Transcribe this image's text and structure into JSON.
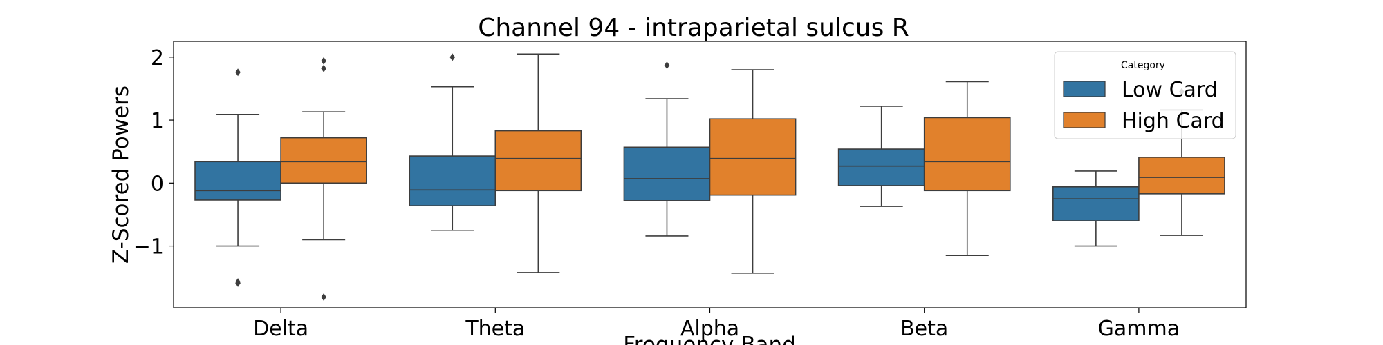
{
  "chart_data": {
    "type": "box",
    "title": "Channel 94 - intraparietal sulcus R",
    "xlabel": "Frequency Band",
    "ylabel": "Z-Scored Powers",
    "ylim": [
      -1.98,
      2.25
    ],
    "yticks": [
      2,
      1,
      0,
      -1
    ],
    "ytick_labels": [
      "2",
      "1",
      "0",
      "−1"
    ],
    "categories": [
      "Delta",
      "Theta",
      "Alpha",
      "Beta",
      "Gamma"
    ],
    "legend": {
      "title": "Category",
      "position": "top-right"
    },
    "series": [
      {
        "name": "Low Card",
        "color": "#3274a1",
        "boxes": [
          {
            "whislo": -1.0,
            "q1": -0.27,
            "med": -0.12,
            "q3": 0.34,
            "whishi": 1.09,
            "fliers": [
              -1.57,
              -1.59,
              1.76
            ]
          },
          {
            "whislo": -0.75,
            "q1": -0.36,
            "med": -0.11,
            "q3": 0.43,
            "whishi": 1.53,
            "fliers": [
              2.0
            ]
          },
          {
            "whislo": -0.84,
            "q1": -0.28,
            "med": 0.07,
            "q3": 0.57,
            "whishi": 1.34,
            "fliers": [
              1.87
            ]
          },
          {
            "whislo": -0.37,
            "q1": -0.04,
            "med": 0.27,
            "q3": 0.54,
            "whishi": 1.22,
            "fliers": []
          },
          {
            "whislo": -1.0,
            "q1": -0.6,
            "med": -0.25,
            "q3": -0.06,
            "whishi": 0.19,
            "fliers": []
          }
        ]
      },
      {
        "name": "High Card",
        "color": "#e1812c",
        "boxes": [
          {
            "whislo": -0.9,
            "q1": 0.0,
            "med": 0.34,
            "q3": 0.72,
            "whishi": 1.13,
            "fliers": [
              1.82,
              1.94,
              -1.81
            ]
          },
          {
            "whislo": -1.42,
            "q1": -0.12,
            "med": 0.39,
            "q3": 0.83,
            "whishi": 2.05,
            "fliers": []
          },
          {
            "whislo": -1.43,
            "q1": -0.19,
            "med": 0.39,
            "q3": 1.02,
            "whishi": 1.8,
            "fliers": []
          },
          {
            "whislo": -1.15,
            "q1": -0.12,
            "med": 0.34,
            "q3": 1.04,
            "whishi": 1.61,
            "fliers": []
          },
          {
            "whislo": -0.83,
            "q1": -0.17,
            "med": 0.09,
            "q3": 0.41,
            "whishi": 1.16,
            "fliers": [
              1.45
            ]
          }
        ]
      }
    ]
  }
}
